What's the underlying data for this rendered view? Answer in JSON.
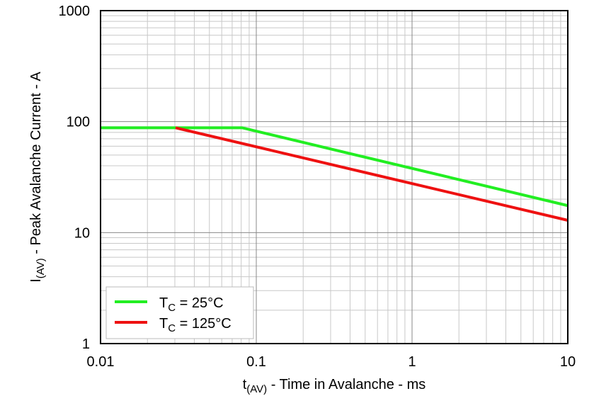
{
  "chart_data": {
    "type": "line",
    "xlabel": {
      "main": "t",
      "sub": "(AV)",
      "rest": " - Time in Avalanche - ms"
    },
    "ylabel": {
      "main": "I",
      "sub": "(AV)",
      "rest": " - Peak Avalanche Current - A"
    },
    "xscale": "log",
    "yscale": "log",
    "xlim": [
      0.01,
      10
    ],
    "ylim": [
      1,
      1000
    ],
    "xticks": [
      0.01,
      0.1,
      1,
      10
    ],
    "yticks": [
      1,
      10,
      100,
      1000
    ],
    "grid": true,
    "minor_grid": true,
    "legend": "lower left",
    "series": [
      {
        "name": {
          "main": "T",
          "sub": "C",
          "rest": " = 25°C"
        },
        "color": "#22ee22",
        "x": [
          0.01,
          0.081,
          10
        ],
        "values": [
          88,
          88,
          17.5
        ]
      },
      {
        "name": {
          "main": "T",
          "sub": "C",
          "rest": " = 125°C"
        },
        "color": "#ee1111",
        "x": [
          0.0303,
          10
        ],
        "values": [
          88,
          12.9
        ]
      }
    ]
  }
}
